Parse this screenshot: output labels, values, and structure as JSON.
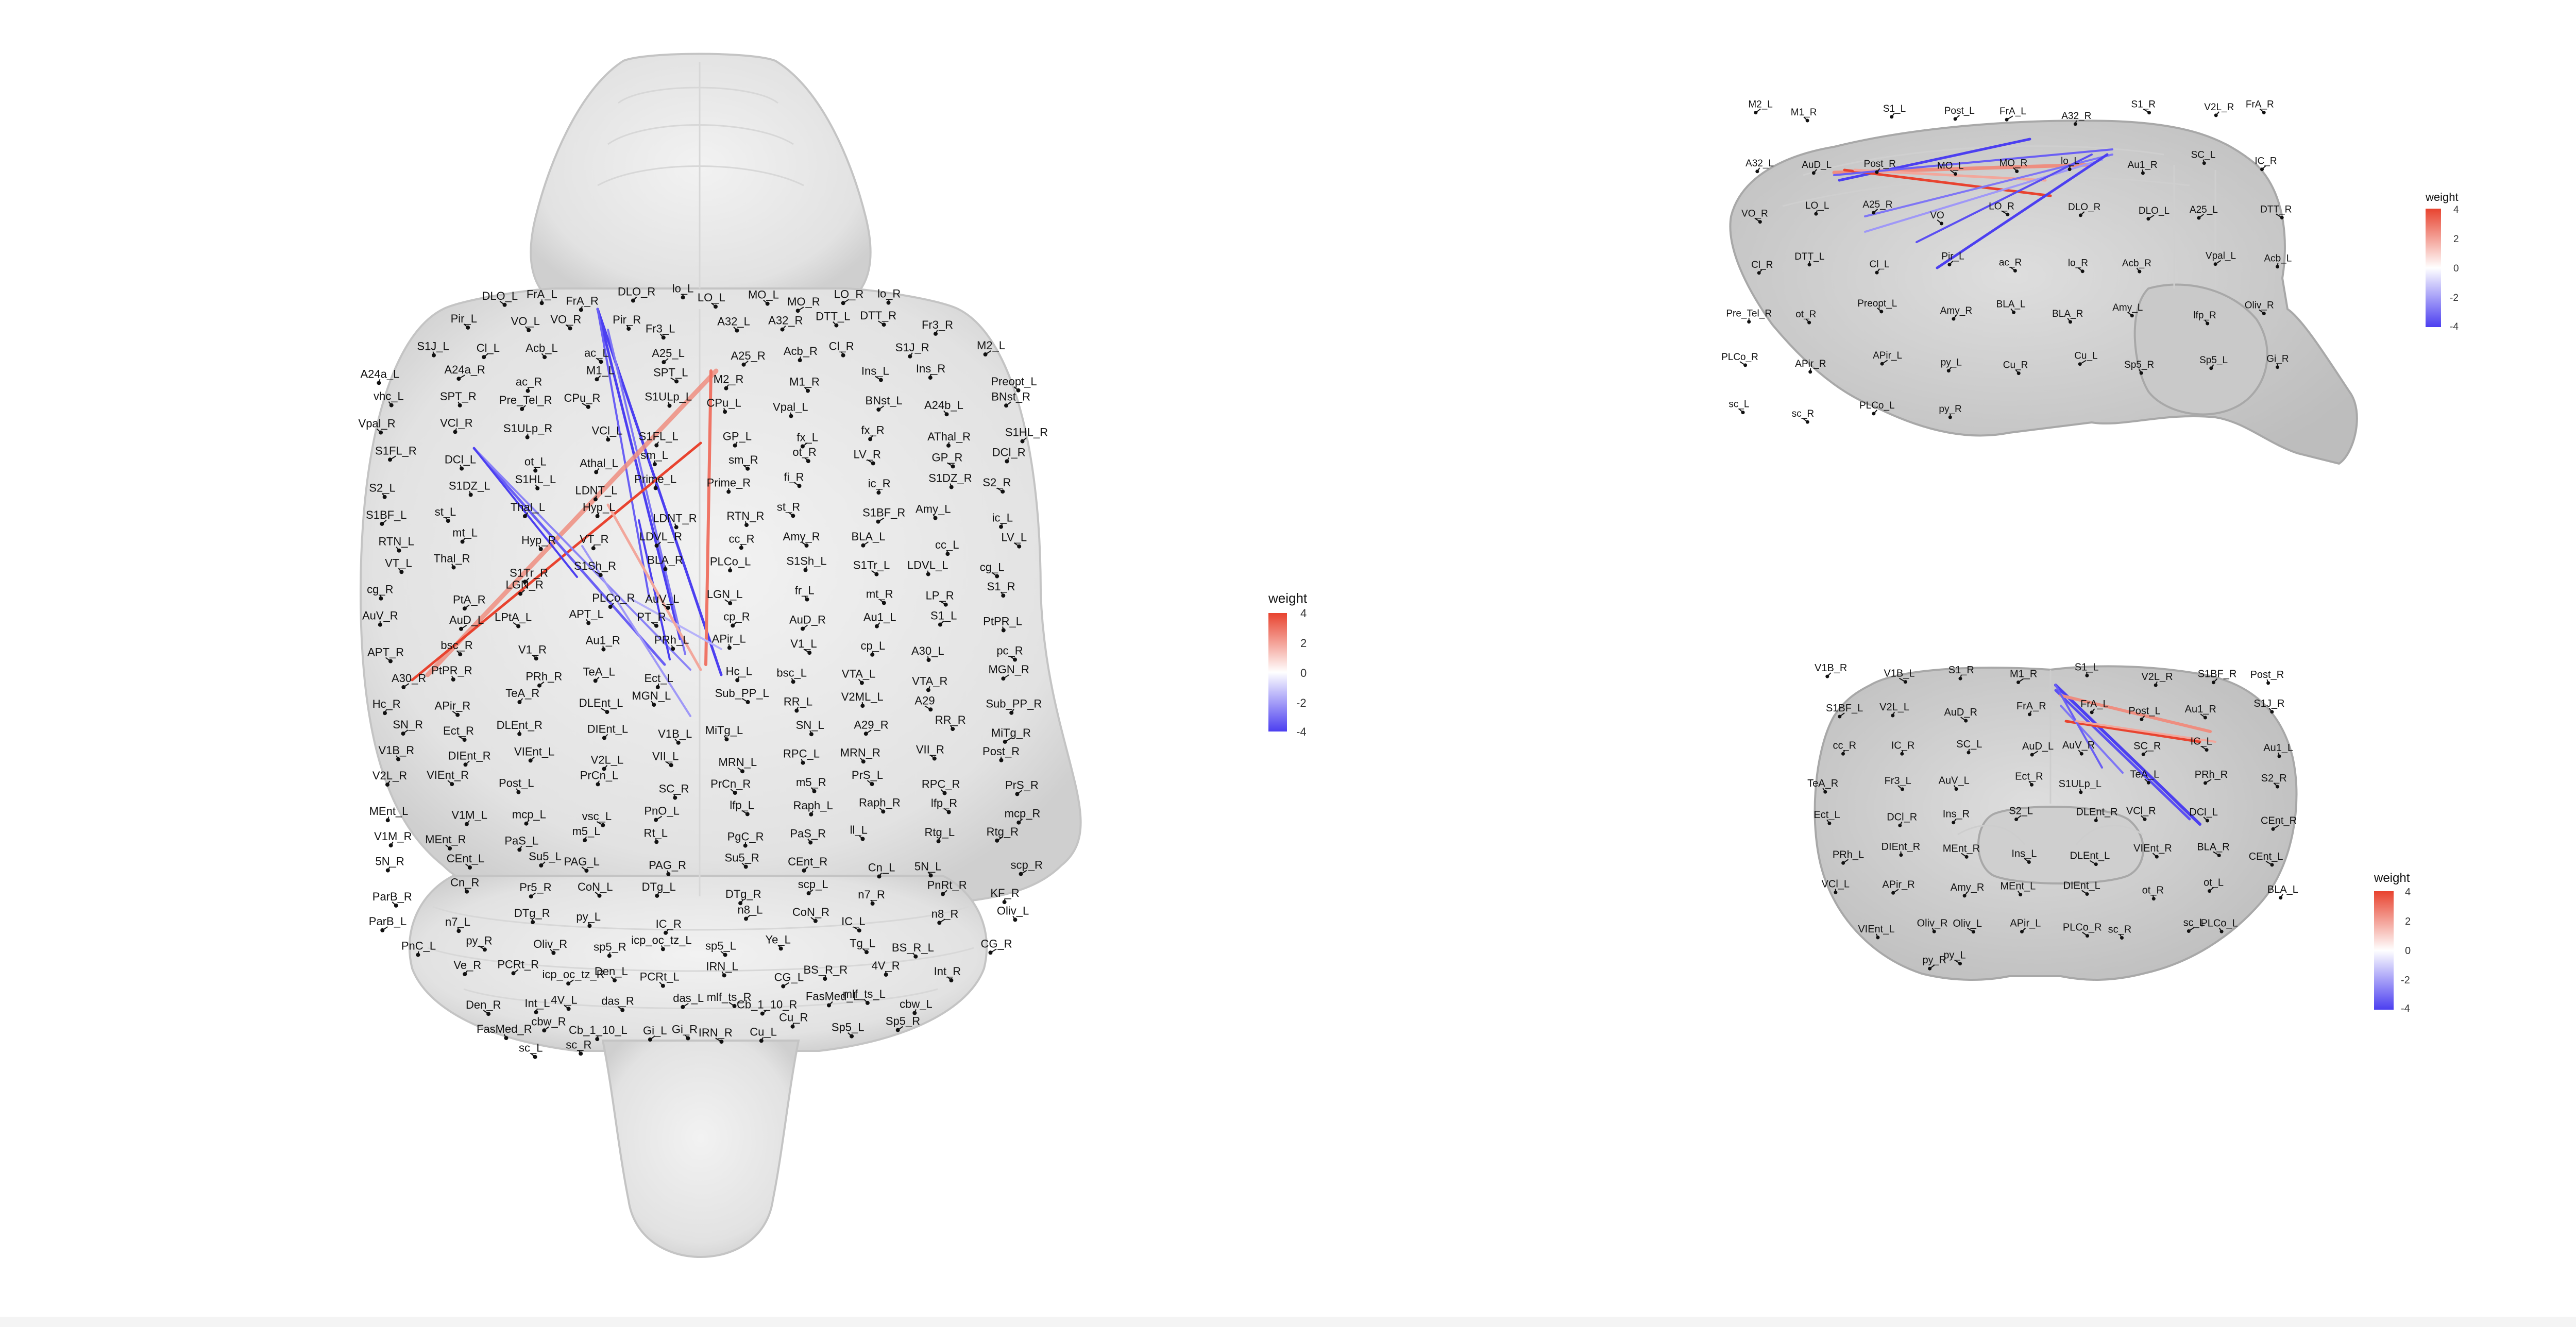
{
  "legend_title": "weight",
  "legend_ticks": [
    "4",
    "2",
    "0",
    "-2",
    "-4"
  ],
  "colors": {
    "positive": "#e8432f",
    "neutral": "#ffffff",
    "negative": "#4c3ff0",
    "brain_fill": "#e6e6e6",
    "brain_stroke": "#bdbdbd",
    "label": "#111111"
  },
  "dorsal": {
    "labels": [
      "DLO_L",
      "FrA_L",
      "FrA_R",
      "DLO_R",
      "lo_L",
      "LO_L",
      "MO_L",
      "MO_R",
      "LO_R",
      "lo_R",
      "Pir_L",
      "VO_L",
      "VO_R",
      "Pir_R",
      "Fr3_L",
      "A32_L",
      "A32_R",
      "DTT_L",
      "DTT_R",
      "Fr3_R",
      "S1J_L",
      "Cl_L",
      "Acb_L",
      "ac_L",
      "A25_L",
      "A25_R",
      "Acb_R",
      "Cl_R",
      "S1J_R",
      "M2_L",
      "A24a_L",
      "A24a_R",
      "ac_R",
      "M1_L",
      "SPT_L",
      "M2_R",
      "M1_R",
      "Ins_L",
      "Ins_R",
      "Preopt_L",
      "vhc_L",
      "SPT_R",
      "Pre_Tel_R",
      "CPu_R",
      "S1ULp_L",
      "CPu_L",
      "Vpal_L",
      "BNst_L",
      "A24b_L",
      "BNst_R",
      "Vpal_R",
      "VCl_R",
      "S1ULp_R",
      "VCl_L",
      "S1FL_L",
      "GP_L",
      "fx_L",
      "fx_R",
      "AThal_R",
      "S1HL_R",
      "S1FL_R",
      "DCl_L",
      "ot_L",
      "Athal_L",
      "sm_L",
      "sm_R",
      "ot_R",
      "LV_R",
      "GP_R",
      "DCl_R",
      "S2_L",
      "S1DZ_L",
      "S1HL_L",
      "LDNT_L",
      "Prime_L",
      "Prime_R",
      "fi_R",
      "ic_R",
      "S1DZ_R",
      "S2_R",
      "S1BF_L",
      "st_L",
      "Thal_L",
      "Hyp_L",
      "LDNT_R",
      "RTN_R",
      "st_R",
      "S1BF_R",
      "Amy_L",
      "ic_L",
      "RTN_L",
      "mt_L",
      "Hyp_R",
      "VT_R",
      "LDVL_R",
      "cc_R",
      "Amy_R",
      "BLA_L",
      "cc_L",
      "LV_L",
      "VT_L",
      "Thal_R",
      "S1Tr_R",
      "S1Sh_R",
      "BLA_R",
      "PLCo_L",
      "S1Sh_L",
      "S1Tr_L",
      "LDVL_L",
      "cg_L",
      "cg_R",
      "PtA_R",
      "LGN_R",
      "PLCo_R",
      "AuV_L",
      "LGN_L",
      "fr_L",
      "mt_R",
      "LP_R",
      "S1_R",
      "AuV_R",
      "AuD_L",
      "LPtA_L",
      "APT_L",
      "PT_R",
      "cp_R",
      "AuD_R",
      "Au1_L",
      "S1_L",
      "PtPR_L",
      "APT_R",
      "bsc_R",
      "V1_R",
      "Au1_R",
      "PRh_L",
      "APir_L",
      "V1_L",
      "cp_L",
      "A30_L",
      "pc_R",
      "A30_R",
      "PtPR_R",
      "PRh_R",
      "TeA_L",
      "Ect_L",
      "Hc_L",
      "bsc_L",
      "VTA_L",
      "VTA_R",
      "MGN_R",
      "Hc_R",
      "APir_R",
      "TeA_R",
      "DLEnt_L",
      "MGN_L",
      "Sub_PP_L",
      "RR_L",
      "V2ML_L",
      "A29",
      "Sub_PP_R",
      "SN_R",
      "Ect_R",
      "DLEnt_R",
      "DIEnt_L",
      "V1B_L",
      "MiTg_L",
      "SN_L",
      "A29_R",
      "RR_R",
      "MiTg_R",
      "V1B_R",
      "DIEnt_R",
      "VIEnt_L",
      "V2L_L",
      "VII_L",
      "MRN_L",
      "RPC_L",
      "MRN_R",
      "VII_R",
      "Post_R",
      "V2L_R",
      "VIEnt_R",
      "Post_L",
      "PrCn_L",
      "SC_R",
      "PrCn_R",
      "m5_R",
      "PrS_L",
      "RPC_R",
      "PrS_R",
      "MEnt_L",
      "V1M_L",
      "mcp_L",
      "vsc_L",
      "PnO_L",
      "lfp_L",
      "Raph_L",
      "Raph_R",
      "lfp_R",
      "mcp_R",
      "V1M_R",
      "MEnt_R",
      "PaS_L",
      "m5_L",
      "Rt_L",
      "PgC_R",
      "PaS_R",
      "ll_L",
      "Rtg_L",
      "Rtg_R",
      "5N_R",
      "CEnt_L",
      "Su5_L",
      "PAG_L",
      "PAG_R",
      "Su5_R",
      "CEnt_R",
      "Cn_L",
      "5N_L",
      "scp_R",
      "ParB_R",
      "Cn_R",
      "Pr5_R",
      "CoN_L",
      "DTg_L",
      "DTg_R",
      "scp_L",
      "n7_R",
      "PnRt_R",
      "KF_R",
      "ParB_L",
      "n7_L",
      "DTg_R",
      "py_L",
      "IC_R",
      "n8_L",
      "CoN_R",
      "IC_L",
      "n8_R",
      "Oliv_L",
      "PnC_L",
      "py_R",
      "Oliv_R",
      "sp5_R",
      "icp_oc_tz_L",
      "sp5_L",
      "Ye_L",
      "Tg_L",
      "BS_R_L",
      "CG_R",
      "Ve_R",
      "PCRt_R",
      "icp_oc_tz_R",
      "Den_L",
      "PCRt_L",
      "IRN_L",
      "CG_L",
      "BS_R_R",
      "4V_R",
      "Int_R",
      "Den_R",
      "Int_L",
      "4V_L",
      "das_R",
      "das_L",
      "mlf_ts_R",
      "Cb_1_10_R",
      "FasMed_L",
      "mlf_ts_L",
      "cbw_L",
      "FasMed_R",
      "cbw_R",
      "Cb_1_10_L",
      "Gi_L",
      "Gi_R",
      "IRN_R",
      "Cu_L",
      "Cu_R",
      "Sp5_L",
      "Sp5_R",
      "sc_L",
      "sc_R"
    ]
  },
  "sagittal": {
    "labels": [
      "M2_L",
      "M1_R",
      "S1_L",
      "Post_L",
      "FrA_L",
      "A32_R",
      "S1_R",
      "V2L_R",
      "FrA_R",
      "A32_L",
      "AuD_L",
      "Post_R",
      "MO_L",
      "MO_R",
      "lo_L",
      "Au1_R",
      "SC_L",
      "IC_R",
      "VO_R",
      "LO_L",
      "A25_R",
      "VO",
      "LO_R",
      "DLO_R",
      "DLO_L",
      "A25_L",
      "DTT_R",
      "Cl_R",
      "DTT_L",
      "Cl_L",
      "Pir_L",
      "ac_R",
      "lo_R",
      "Acb_R",
      "Vpal_L",
      "Acb_L",
      "Pre_Tel_R",
      "ot_R",
      "Preopt_L",
      "Amy_R",
      "BLA_L",
      "BLA_R",
      "Amy_L",
      "lfp_R",
      "Oliv_R",
      "PLCo_R",
      "APir_R",
      "APir_L",
      "py_L",
      "Cu_R",
      "Cu_L",
      "Sp5_R",
      "Sp5_L",
      "Gi_R",
      "sc_L",
      "sc_R",
      "PLCo_L",
      "py_R"
    ]
  },
  "coronal": {
    "labels": [
      "V1B_R",
      "V1B_L",
      "S1_R",
      "M1_R",
      "S1_L",
      "V2L_R",
      "S1BF_R",
      "Post_R",
      "S1BF_L",
      "V2L_L",
      "AuD_R",
      "FrA_R",
      "FrA_L",
      "Post_L",
      "Au1_R",
      "S1J_R",
      "cc_R",
      "IC_R",
      "SC_L",
      "AuD_L",
      "AuV_R",
      "SC_R",
      "IC_L",
      "Au1_L",
      "TeA_R",
      "Fr3_L",
      "AuV_L",
      "Ect_R",
      "S1ULp_L",
      "TeA_L",
      "PRh_R",
      "S2_R",
      "Ect_L",
      "DCl_R",
      "Ins_R",
      "S2_L",
      "DLEnt_R",
      "VCl_R",
      "DCl_L",
      "CEnt_R",
      "PRh_L",
      "DIEnt_R",
      "MEnt_R",
      "Ins_L",
      "DLEnt_L",
      "VIEnt_R",
      "BLA_R",
      "CEnt_L",
      "VCl_L",
      "APir_R",
      "Amy_R",
      "MEnt_L",
      "DIEnt_L",
      "ot_R",
      "ot_L",
      "BLA_L",
      "VIEnt_L",
      "Oliv_R",
      "Oliv_L",
      "APir_L",
      "PLCo_R",
      "sc_R",
      "sc_L",
      "PLCo_L",
      "py_R",
      "py_L"
    ]
  }
}
